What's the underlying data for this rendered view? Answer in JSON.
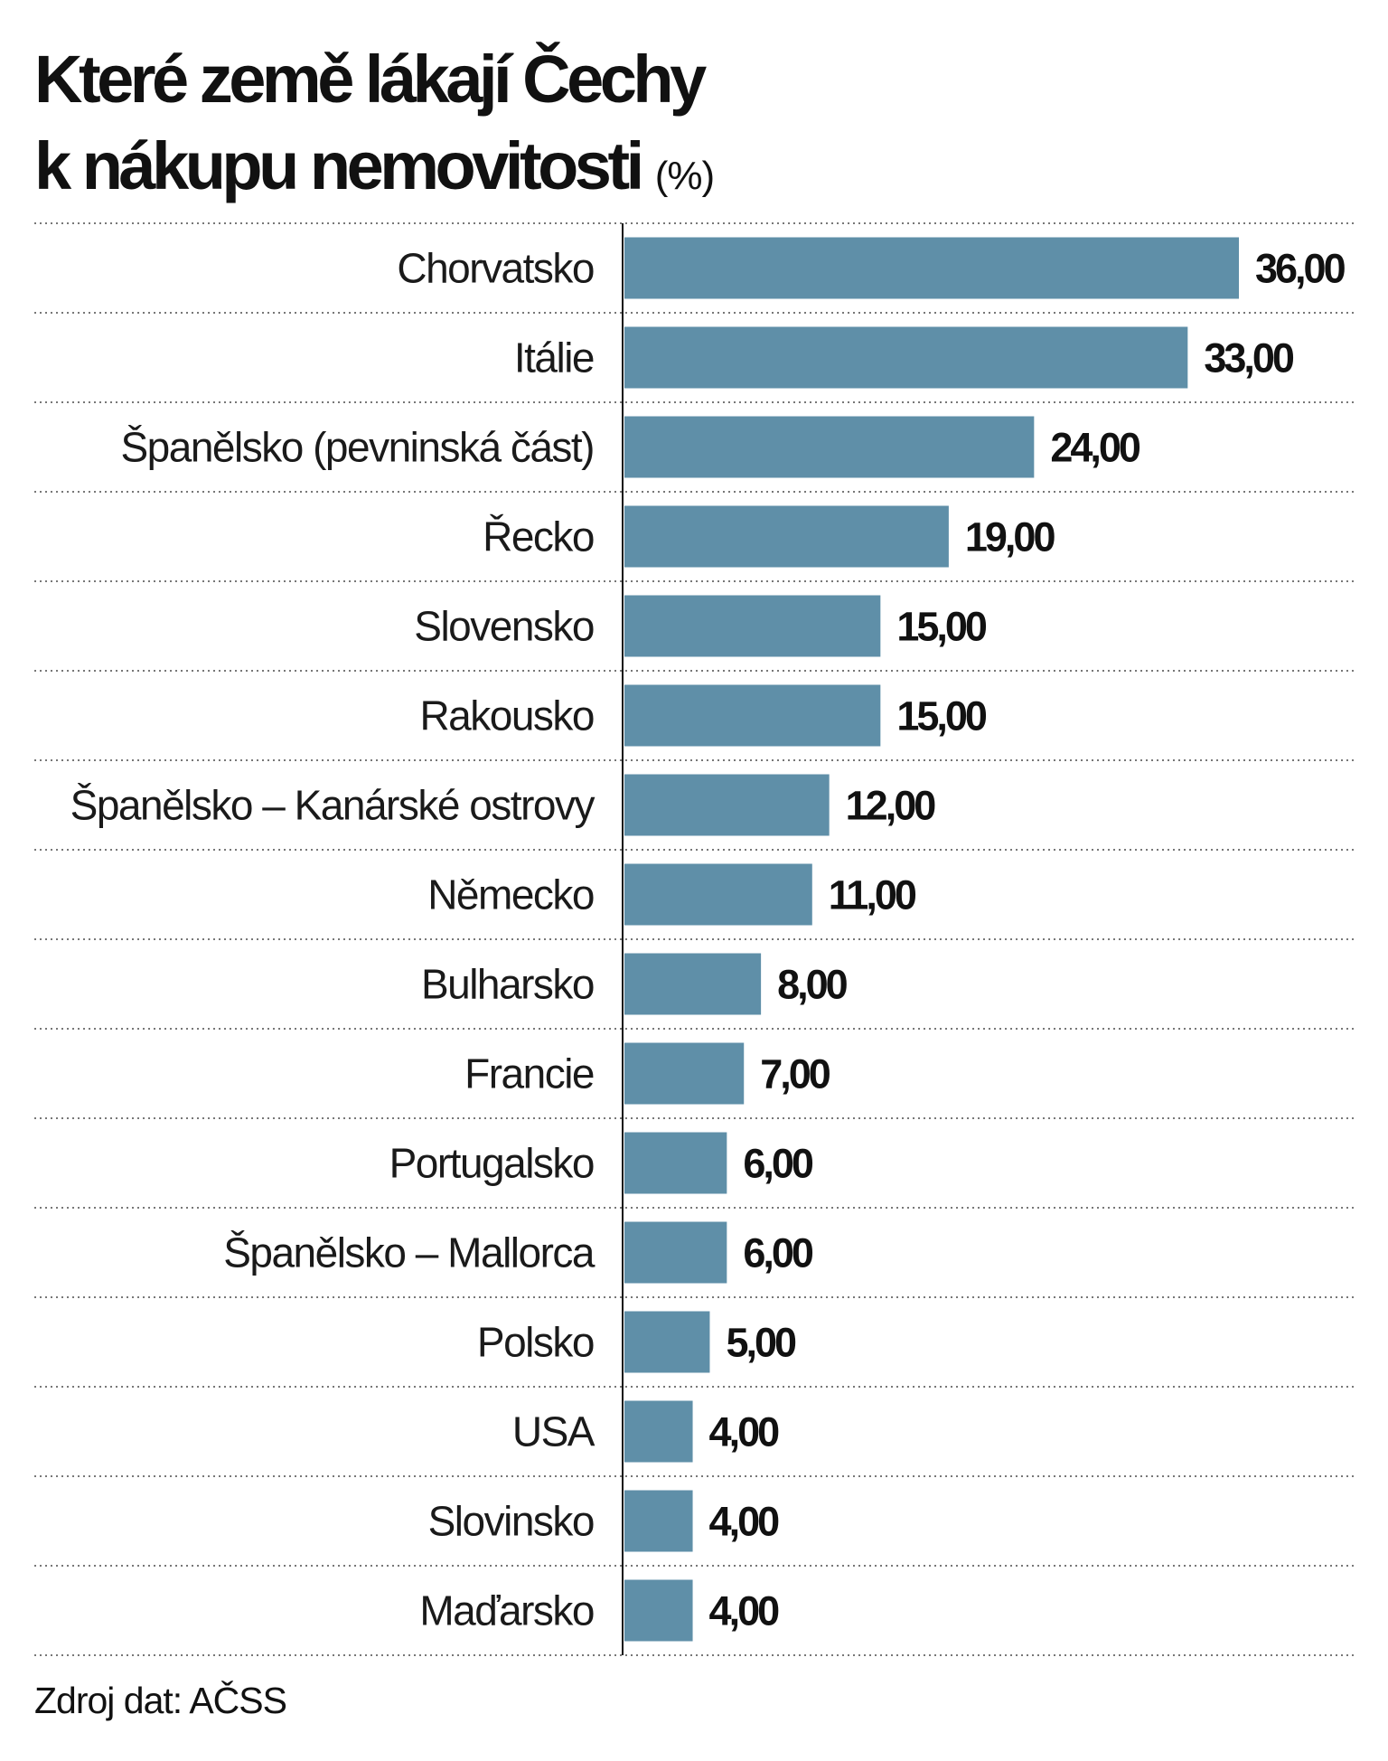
{
  "header": {
    "title_line1": "Které země lákají Čechy",
    "title_line2": "k nákupu nemovitosti",
    "title_unit": "(%)"
  },
  "footer": {
    "source": "Zdroj dat: AČSS"
  },
  "colors": {
    "bar": "#5f8fa8",
    "axis": "#111111",
    "divider": "#777777"
  },
  "chart_data": {
    "type": "bar",
    "orientation": "horizontal",
    "title": "Které země lákají Čechy k nákupu nemovitosti (%)",
    "xlabel": "",
    "ylabel": "",
    "xlim": [
      0,
      36
    ],
    "grid": false,
    "categories": [
      "Chorvatsko",
      "Itálie",
      "Španělsko (pevninská část)",
      "Řecko",
      "Slovensko",
      "Rakousko",
      "Španělsko – Kanárské ostrovy",
      "Německo",
      "Bulharsko",
      "Francie",
      "Portugalsko",
      "Španělsko – Mallorca",
      "Polsko",
      "USA",
      "Slovinsko",
      "Maďarsko"
    ],
    "values": [
      36,
      33,
      24,
      19,
      15,
      15,
      12,
      11,
      8,
      7,
      6,
      6,
      5,
      4,
      4,
      4
    ],
    "value_labels": [
      "36,00",
      "33,00",
      "24,00",
      "19,00",
      "15,00",
      "15,00",
      "12,00",
      "11,00",
      "8,00",
      "7,00",
      "6,00",
      "6,00",
      "5,00",
      "4,00",
      "4,00",
      "4,00"
    ]
  }
}
